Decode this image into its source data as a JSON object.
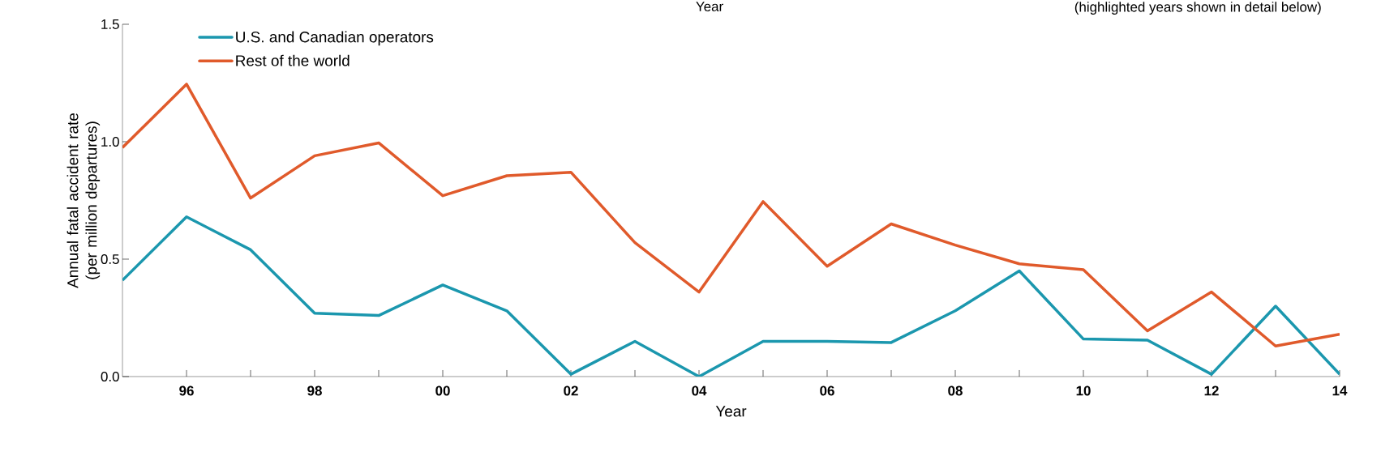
{
  "chart_data": {
    "type": "line",
    "xlabel": "Year",
    "ylabel": "Annual fatal accident rate (per million departures)",
    "annotations": [
      "Year",
      "(highlighted years shown in detail below)"
    ],
    "x": [
      1995,
      1996,
      1997,
      1998,
      1999,
      2000,
      2001,
      2002,
      2003,
      2004,
      2005,
      2006,
      2007,
      2008,
      2009,
      2010,
      2011,
      2012,
      2013,
      2014
    ],
    "series": [
      {
        "name": "U.S. and Canadian operators",
        "color": "#1b97ae",
        "values": [
          0.41,
          0.68,
          0.54,
          0.27,
          0.26,
          0.39,
          0.28,
          0.01,
          0.15,
          0.0,
          0.15,
          0.15,
          0.145,
          0.28,
          0.45,
          0.16,
          0.155,
          0.01,
          0.3,
          0.01
        ]
      },
      {
        "name": "Rest of the world",
        "color": "#e05a2b",
        "values": [
          0.975,
          1.245,
          0.76,
          0.94,
          0.995,
          0.77,
          0.855,
          0.87,
          0.57,
          0.36,
          0.745,
          0.47,
          0.65,
          0.56,
          0.48,
          0.455,
          0.195,
          0.36,
          0.13,
          0.18
        ]
      }
    ],
    "xlim": [
      1995,
      2014
    ],
    "xticks": [
      {
        "value": 1996,
        "label": "96"
      },
      {
        "value": 1997,
        "label": null
      },
      {
        "value": 1998,
        "label": "98"
      },
      {
        "value": 1999,
        "label": null
      },
      {
        "value": 2000,
        "label": "00"
      },
      {
        "value": 2001,
        "label": null
      },
      {
        "value": 2002,
        "label": "02"
      },
      {
        "value": 2003,
        "label": null
      },
      {
        "value": 2004,
        "label": "04"
      },
      {
        "value": 2005,
        "label": null
      },
      {
        "value": 2006,
        "label": "06"
      },
      {
        "value": 2007,
        "label": null
      },
      {
        "value": 2008,
        "label": "08"
      },
      {
        "value": 2009,
        "label": null
      },
      {
        "value": 2010,
        "label": "10"
      },
      {
        "value": 2011,
        "label": null
      },
      {
        "value": 2012,
        "label": "12"
      },
      {
        "value": 2013,
        "label": null
      },
      {
        "value": 2014,
        "label": "14"
      }
    ],
    "ylim": [
      0,
      1.5
    ],
    "yticks": [
      {
        "value": 0,
        "label": "0.0"
      },
      {
        "value": 0.5,
        "label": "0.5"
      },
      {
        "value": 1,
        "label": "1.0"
      },
      {
        "value": 1.5,
        "label": "1.5"
      }
    ],
    "grid": false,
    "legend": "top left",
    "marker": "none",
    "line_style": "solid"
  }
}
